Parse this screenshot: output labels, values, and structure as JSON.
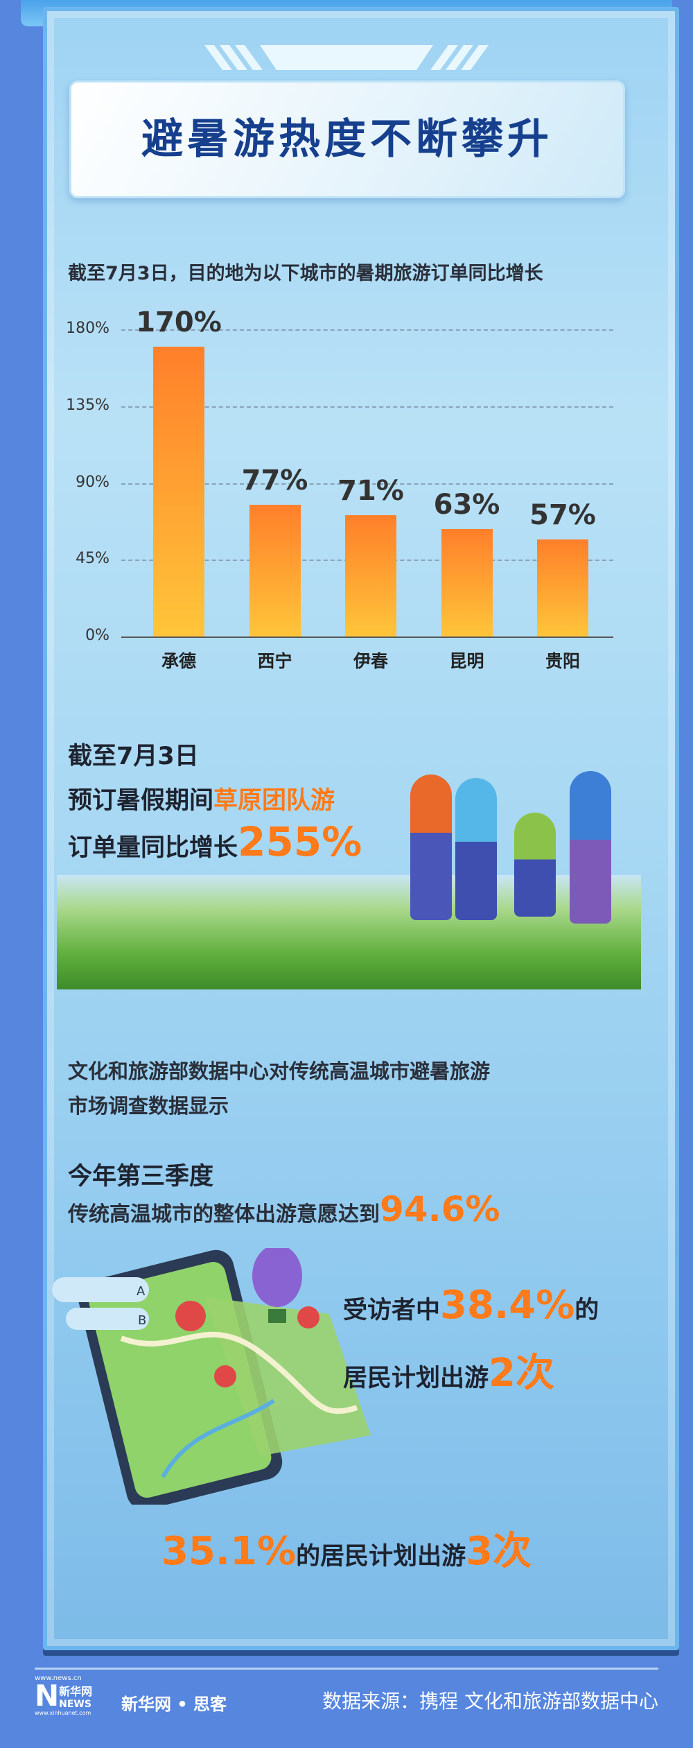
{
  "title": "避暑游热度不断攀升",
  "chart_section": {
    "subtitle": "截至7月3日，目的地为以下城市的暑期旅游订单同比增长"
  },
  "chart_data": {
    "type": "bar",
    "categories": [
      "承德",
      "西宁",
      "伊春",
      "昆明",
      "贵阳"
    ],
    "values": [
      170,
      77,
      71,
      63,
      57
    ],
    "value_labels": [
      "170%",
      "77%",
      "71%",
      "63%",
      "57%"
    ],
    "yticks": [
      "0%",
      "45%",
      "90%",
      "135%",
      "180%"
    ],
    "ylim": [
      0,
      180
    ],
    "grid": true,
    "colors": {
      "bar_top": "#ff7f2a",
      "bar_bottom": "#ffc53a"
    }
  },
  "grassland": {
    "line1": "截至7月3日",
    "line2_prefix": "预订暑假期间",
    "line2_highlight": "草原团队游",
    "line3_prefix": "订单量同比增长",
    "line3_value": "255%"
  },
  "survey": {
    "intro": "文化和旅游部数据中心对传统高温城市避暑旅游",
    "intro2": "市场调查数据显示",
    "q3": "今年第三季度",
    "intent_prefix": "传统高温城市的整体出游意愿达到",
    "intent_value": "94.6%",
    "p1_prefix": "受访者中",
    "p1_value": "38.4%",
    "p1_suffix": "的",
    "p2_prefix": "居民计划出游",
    "p2_value": "2次",
    "p3_value": "35.1%",
    "p3_mid": "的居民计划出游",
    "p3_count": "3次",
    "bubble_a": "A",
    "bubble_b": "B"
  },
  "footer": {
    "logo_url_top": "www.news.cn",
    "logo_cn": "新华网",
    "logo_en": "NEWS",
    "logo_url_bottom": "www.xinhuanet.com",
    "brand": "新华网 • 思客",
    "source": "数据来源：携程 文化和旅游部数据中心"
  },
  "accent": "#ff7a18",
  "title_color": "#163f8e",
  "background": "#5686de"
}
